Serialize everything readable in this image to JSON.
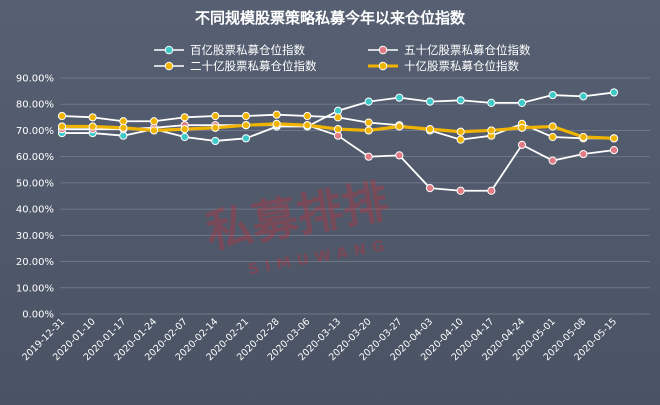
{
  "chart_data": {
    "type": "line",
    "title": "不同规模股票策略私募今年以来仓位指数",
    "xlabel": "",
    "ylabel": "",
    "ylim": [
      0,
      90
    ],
    "y_ticks": [
      "0.00%",
      "10.00%",
      "20.00%",
      "30.00%",
      "40.00%",
      "50.00%",
      "60.00%",
      "70.00%",
      "80.00%",
      "90.00%"
    ],
    "y_tick_values": [
      0,
      10,
      20,
      30,
      40,
      50,
      60,
      70,
      80,
      90
    ],
    "grid": true,
    "legend_position": "top",
    "x": [
      "2019-12-31",
      "2020-01-10",
      "2020-01-17",
      "2020-01-24",
      "2020-02-07",
      "2020-02-14",
      "2020-02-21",
      "2020-02-28",
      "2020-03-06",
      "2020-03-13",
      "2020-03-20",
      "2020-03-27",
      "2020-04-03",
      "2020-04-10",
      "2020-04-17",
      "2020-04-24",
      "2020-05-01",
      "2020-05-08",
      "2020-05-15"
    ],
    "series": [
      {
        "name": "百亿股票私募仓位指数",
        "color": "#3ec9c9",
        "line_color": "#ffffff",
        "values": [
          69.0,
          69.0,
          68.0,
          70.5,
          67.5,
          66.0,
          67.0,
          71.5,
          71.5,
          77.5,
          81.0,
          82.5,
          81.0,
          81.5,
          80.5,
          80.5,
          83.5,
          83.0,
          84.5
        ]
      },
      {
        "name": "五十亿股票私募仓位指数",
        "color": "#e07a84",
        "line_color": "#ffffff",
        "values": [
          70.5,
          70.5,
          70.5,
          71.0,
          72.0,
          72.0,
          72.0,
          72.0,
          72.0,
          68.0,
          60.0,
          60.5,
          48.0,
          47.0,
          47.0,
          64.5,
          58.5,
          61.0,
          62.5
        ]
      },
      {
        "name": "二十亿股票私募仓位指数",
        "color": "#f0b400",
        "line_color": "#ffffff",
        "values": [
          75.5,
          75.0,
          73.5,
          73.5,
          75.0,
          75.5,
          75.5,
          76.0,
          75.5,
          75.0,
          73.0,
          72.0,
          70.0,
          66.5,
          68.0,
          72.5,
          67.5,
          67.0,
          67.0
        ]
      },
      {
        "name": "十亿股票私募仓位指数",
        "color": "#f0b400",
        "line_color": "#f0b400",
        "values": [
          71.5,
          71.5,
          71.0,
          70.0,
          70.5,
          71.0,
          72.0,
          72.5,
          72.0,
          70.5,
          70.0,
          71.5,
          70.5,
          69.5,
          70.0,
          71.0,
          71.5,
          67.5,
          67.0
        ]
      }
    ],
    "watermark": {
      "text_cn": "私募排排",
      "text_en": "SIMUWANG"
    }
  }
}
